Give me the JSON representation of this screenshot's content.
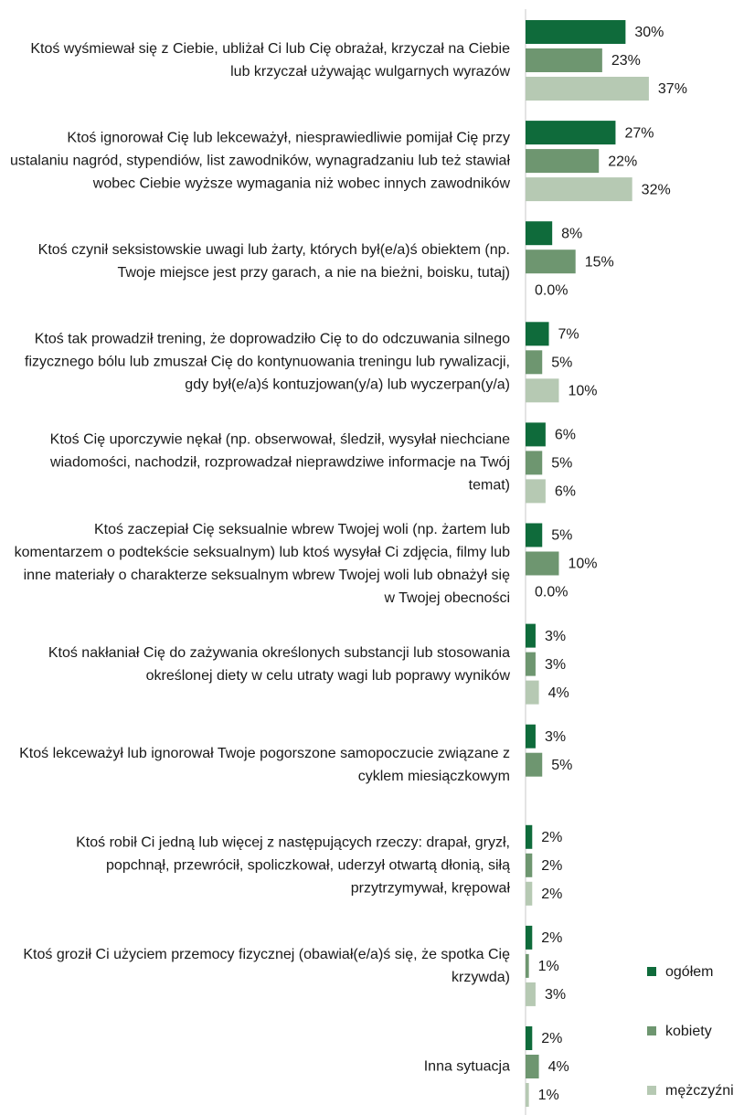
{
  "chart_data": {
    "type": "hbar",
    "categories": [
      "Ktoś wyśmiewał się z Ciebie, ubliżał Ci lub Cię obrażał, krzyczał na Ciebie lub krzyczał używając wulgarnych wyrazów",
      "Ktoś ignorował Cię lub lekceważył, niesprawiedliwie pomijał Cię przy ustalaniu nagród, stypendiów, list zawodników, wynagradzaniu lub też stawiał wobec Ciebie wyższe wymagania niż wobec innych zawodników",
      "Ktoś czynił seksistowskie uwagi lub żarty, których był(e/a)ś obiektem (np. Twoje miejsce jest przy garach, a nie na bieżni, boisku, tutaj)",
      "Ktoś tak prowadził trening, że doprowadziło Cię to do odczuwania silnego fizycznego bólu lub zmuszał Cię do kontynuowania treningu lub rywalizacji, gdy był(e/a)ś kontuzjowan(y/a) lub wyczerpan(y/a)",
      "Ktoś Cię uporczywie nękał (np. obserwował, śledził, wysyłał niechciane wiadomości, nachodził, rozprowadzał nieprawdziwe informacje na Twój temat)",
      "Ktoś zaczepiał Cię seksualnie wbrew Twojej woli (np. żartem lub komentarzem o podtekście seksualnym) lub ktoś wysyłał Ci zdjęcia, filmy lub inne materiały o charakterze seksualnym wbrew Twojej woli lub obnażył się w Twojej obecności",
      "Ktoś nakłaniał Cię do zażywania określonych substancji lub stosowania określonej diety w celu utraty wagi lub poprawy wyników",
      "Ktoś lekceważył lub ignorował Twoje pogorszone samopoczucie związane z cyklem miesiączkowym",
      "Ktoś robił Ci jedną lub więcej z następujących rzeczy: drapał, gryzł, popchnął, przewrócił, spoliczkował, uderzył otwartą dłonią, siłą przytrzymywał, krępował",
      "Ktoś groził Ci użyciem przemocy fizycznej (obawiał(e/a)ś się, że spotka Cię krzywda)",
      "Inna sytuacja"
    ],
    "series": [
      {
        "name": "ogółem",
        "color": "#0f6b3b",
        "values": [
          30,
          27,
          8,
          7,
          6,
          5,
          3,
          3,
          2,
          2,
          2
        ],
        "value_labels": [
          "30%",
          "27%",
          "8%",
          "7%",
          "6%",
          "5%",
          "3%",
          "3%",
          "2%",
          "2%",
          "2%"
        ]
      },
      {
        "name": "kobiety",
        "color": "#6e9670",
        "values": [
          23,
          22,
          15,
          5,
          5,
          10,
          3,
          5,
          2,
          1,
          4
        ],
        "value_labels": [
          "23%",
          "22%",
          "15%",
          "5%",
          "5%",
          "10%",
          "3%",
          "5%",
          "2%",
          "1%",
          "4%"
        ]
      },
      {
        "name": "mężczyźni",
        "color": "#b6c9b3",
        "values": [
          37,
          32,
          0,
          10,
          6,
          0,
          4,
          null,
          2,
          3,
          1
        ],
        "value_labels": [
          "37%",
          "32%",
          "0.0%",
          "10%",
          "6%",
          "0.0%",
          "4%",
          null,
          "2%",
          "3%",
          "1%"
        ]
      }
    ],
    "xlim": [
      0,
      65
    ],
    "legend": "right"
  }
}
